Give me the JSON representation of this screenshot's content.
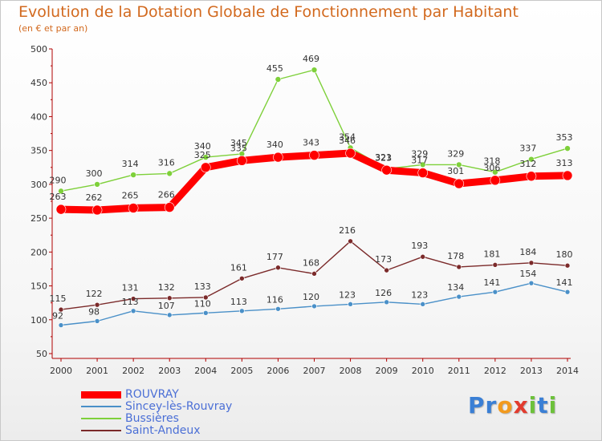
{
  "chart_data": {
    "type": "line",
    "title": "Evolution de la Dotation Globale de Fonctionnement par Habitant",
    "subtitle": "(en € et par an)",
    "xlabel": "",
    "ylabel": "",
    "ylim": [
      50,
      500
    ],
    "yticks": [
      50,
      100,
      150,
      200,
      250,
      300,
      350,
      400,
      450,
      500
    ],
    "x": [
      "2000",
      "2001",
      "2002",
      "2003",
      "2004",
      "2005",
      "2006",
      "2007",
      "2008",
      "2009",
      "2010",
      "2011",
      "2012",
      "2013",
      "2014"
    ],
    "grid": false,
    "legend_position": "bottom-left",
    "series": [
      {
        "name": "Saint-Andeux",
        "color": "#7b2a2a",
        "values": [
          115,
          122,
          131,
          132,
          133,
          161,
          177,
          168,
          216,
          173,
          193,
          178,
          181,
          184,
          180
        ]
      },
      {
        "name": "Sincey-lès-Rouvray",
        "color": "#4a90c8",
        "values": [
          92,
          98,
          113,
          107,
          110,
          113,
          116,
          120,
          123,
          126,
          123,
          134,
          141,
          154,
          141
        ]
      },
      {
        "name": "Bussières",
        "color": "#7ed03a",
        "values": [
          290,
          300,
          314,
          316,
          340,
          345,
          455,
          469,
          354,
          323,
          329,
          329,
          318,
          337,
          353
        ]
      },
      {
        "name": "ROUVRAY",
        "color": "#ff0000",
        "values": [
          263,
          262,
          265,
          266,
          325,
          335,
          340,
          343,
          346,
          321,
          317,
          301,
          306,
          312,
          313
        ]
      }
    ],
    "legend_order": [
      "ROUVRAY",
      "Sincey-lès-Rouvray",
      "Bussières",
      "Saint-Andeux"
    ]
  },
  "logo": {
    "letters": [
      {
        "ch": "P",
        "color": "#3a7fd5"
      },
      {
        "ch": "r",
        "color": "#3a7fd5"
      },
      {
        "ch": "o",
        "color": "#f29a1e"
      },
      {
        "ch": "x",
        "color": "#e23b2e"
      },
      {
        "ch": "i",
        "color": "#6cc13a"
      },
      {
        "ch": "t",
        "color": "#3a7fd5"
      },
      {
        "ch": "i",
        "color": "#6cc13a"
      }
    ]
  }
}
